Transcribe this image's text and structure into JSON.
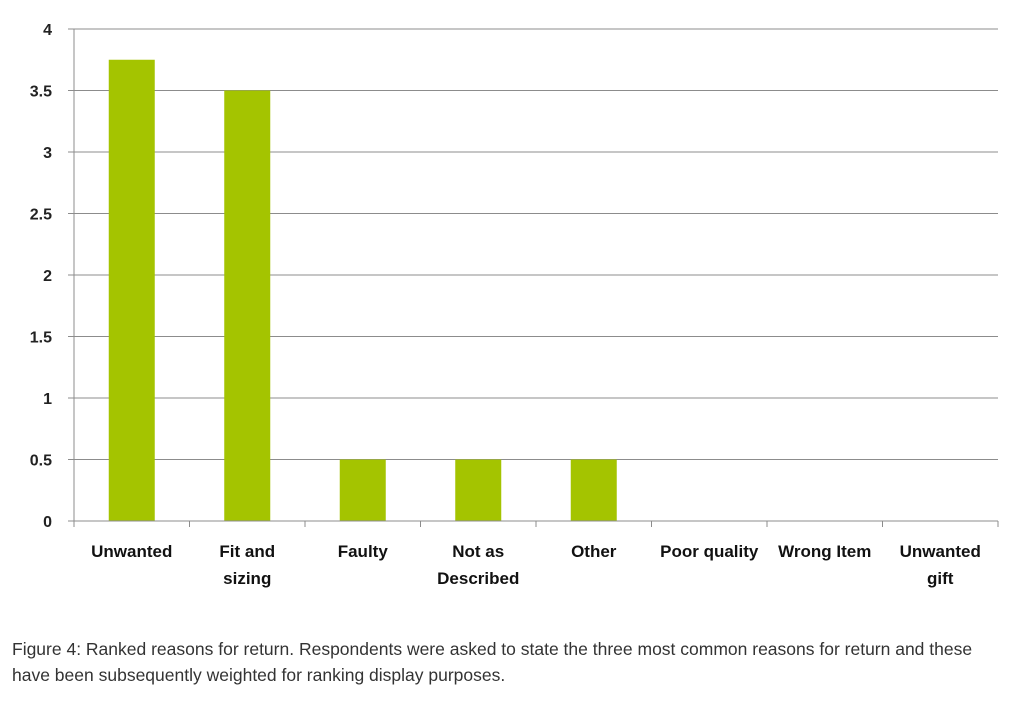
{
  "chart_data": {
    "type": "bar",
    "categories": [
      "Unwanted",
      "Fit and sizing",
      "Faulty",
      "Not as Described",
      "Other",
      "Poor quality",
      "Wrong Item",
      "Unwanted gift"
    ],
    "category_lines": [
      [
        "Unwanted"
      ],
      [
        "Fit and",
        "sizing"
      ],
      [
        "Faulty"
      ],
      [
        "Not as",
        "Described"
      ],
      [
        "Other"
      ],
      [
        "Poor quality"
      ],
      [
        "Wrong Item"
      ],
      [
        "Unwanted",
        "gift"
      ]
    ],
    "values": [
      3.75,
      3.5,
      0.5,
      0.5,
      0.5,
      0,
      0,
      0
    ],
    "yticks": [
      "0",
      "0.5",
      "1",
      "1.5",
      "2",
      "2.5",
      "3",
      "3.5",
      "4"
    ],
    "ylim": [
      0,
      4
    ],
    "grid": true,
    "bar_color": "#a4c400",
    "title": "",
    "xlabel": "",
    "ylabel": ""
  },
  "caption": "Figure 4: Ranked reasons for return.  Respondents were asked to state the three most common reasons for return and these have been subsequently weighted for ranking display purposes."
}
